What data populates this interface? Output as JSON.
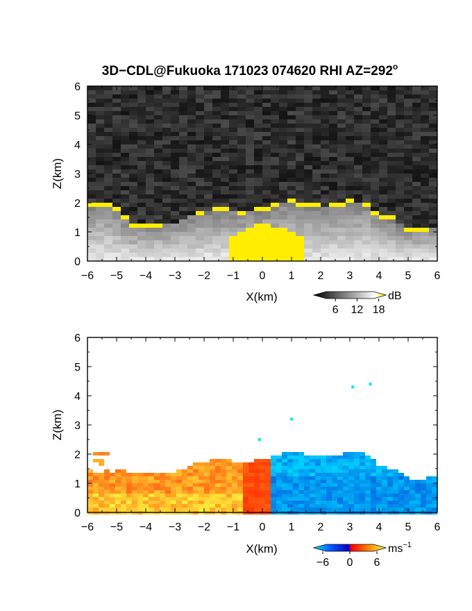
{
  "title": "3D−CDL@Fukuoka 171023 074620 RHI AZ=292",
  "title_degree": "o",
  "chart_data": [
    {
      "type": "heatmap",
      "quantity": "backscatter intensity",
      "xlabel": "X(km)",
      "ylabel": "Z(km)",
      "xlim": [
        -6,
        6
      ],
      "ylim": [
        0,
        6
      ],
      "xticks": [
        "−6",
        "−5",
        "−4",
        "−3",
        "−2",
        "−1",
        "0",
        "1",
        "2",
        "3",
        "4",
        "5",
        "6"
      ],
      "yticks": [
        "0",
        "1",
        "2",
        "3",
        "4",
        "5",
        "6"
      ],
      "colorbar": {
        "unit": "dB",
        "range": [
          0,
          20
        ],
        "ticks": [
          "6",
          "12",
          "18"
        ],
        "colors": [
          "#000000",
          "#ffffff",
          "#ffff00"
        ]
      },
      "cloud_top_km": [
        [
          -6,
          2.0
        ],
        [
          -5.5,
          2.05
        ],
        [
          -5.1,
          2.0
        ],
        [
          -4.5,
          1.3
        ],
        [
          -4.0,
          1.3
        ],
        [
          -3.0,
          1.35
        ],
        [
          -2.2,
          1.75
        ],
        [
          -1.5,
          1.8
        ],
        [
          -0.5,
          1.75
        ],
        [
          0.3,
          1.9
        ],
        [
          0.8,
          2.1
        ],
        [
          1.5,
          2.0
        ],
        [
          2.3,
          1.9
        ],
        [
          3.0,
          2.1
        ],
        [
          3.6,
          2.0
        ],
        [
          4.0,
          1.6
        ],
        [
          4.5,
          1.5
        ],
        [
          5.0,
          1.15
        ],
        [
          6.0,
          1.2
        ]
      ],
      "strong_core": {
        "x": [
          -1.2,
          1.4
        ],
        "z": [
          0.0,
          1.3
        ],
        "level_dB": 19
      }
    },
    {
      "type": "heatmap",
      "quantity": "radial velocity",
      "xlabel": "X(km)",
      "ylabel": "Z(km)",
      "xlim": [
        -6,
        6
      ],
      "ylim": [
        0,
        6
      ],
      "xticks": [
        "−6",
        "−5",
        "−4",
        "−3",
        "−2",
        "−1",
        "0",
        "1",
        "2",
        "3",
        "4",
        "5",
        "6"
      ],
      "yticks": [
        "0",
        "1",
        "2",
        "3",
        "4",
        "5",
        "6"
      ],
      "colorbar": {
        "unit": "ms",
        "unit_exponent": "−1",
        "range": [
          -8,
          8
        ],
        "ticks": [
          "−6",
          "0",
          "6"
        ],
        "colors": [
          "#00e5ff",
          "#0050ff",
          "#0000cc",
          "#ff0000",
          "#ff6a00",
          "#ffc000",
          "#ffff40"
        ]
      },
      "flow_summary": [
        {
          "x_range": [
            -6,
            0
          ],
          "velocity_ms": 4,
          "note": "positive (warm colours)"
        },
        {
          "x_range": [
            0,
            6
          ],
          "velocity_ms": -5,
          "note": "negative (blue colours)"
        }
      ],
      "isolated_echoes": [
        {
          "x": 1.0,
          "z": 3.2,
          "velocity_ms": -7
        },
        {
          "x": 3.1,
          "z": 4.3,
          "velocity_ms": -7
        },
        {
          "x": 3.7,
          "z": 4.4,
          "velocity_ms": -7
        },
        {
          "x": -0.1,
          "z": 2.5,
          "velocity_ms": -7
        }
      ]
    }
  ]
}
